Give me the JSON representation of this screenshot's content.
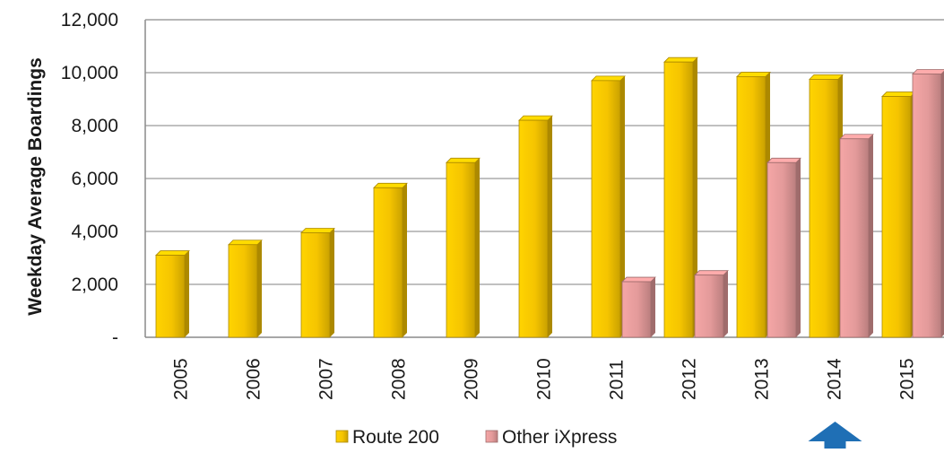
{
  "chart_data": {
    "type": "bar",
    "categories": [
      "2005",
      "2006",
      "2007",
      "2008",
      "2009",
      "2010",
      "2011",
      "2012",
      "2013",
      "2014",
      "2015"
    ],
    "series": [
      {
        "name": "Route 200",
        "color": "#F5C400",
        "values": [
          3100,
          3500,
          3950,
          5650,
          6600,
          8200,
          9700,
          10400,
          9850,
          9750,
          9100
        ]
      },
      {
        "name": "Other iXpress",
        "color": "#E39A9A",
        "values": [
          null,
          null,
          null,
          null,
          null,
          null,
          2100,
          2350,
          6600,
          7500,
          9950
        ]
      }
    ],
    "title": "",
    "xlabel": "",
    "ylabel": "Weekday Average Boardings",
    "ylim": [
      0,
      12000
    ],
    "yticks": [
      {
        "value": 0,
        "label": "-"
      },
      {
        "value": 2000,
        "label": "2,000"
      },
      {
        "value": 4000,
        "label": "4,000"
      },
      {
        "value": 6000,
        "label": "6,000"
      },
      {
        "value": 8000,
        "label": "8,000"
      },
      {
        "value": 10000,
        "label": "10,000"
      },
      {
        "value": 12000,
        "label": "12,000"
      }
    ],
    "grid": true,
    "legend": "bottom",
    "annotation": {
      "type": "arrow",
      "category": "2014",
      "color": "#1F6FB5"
    }
  }
}
